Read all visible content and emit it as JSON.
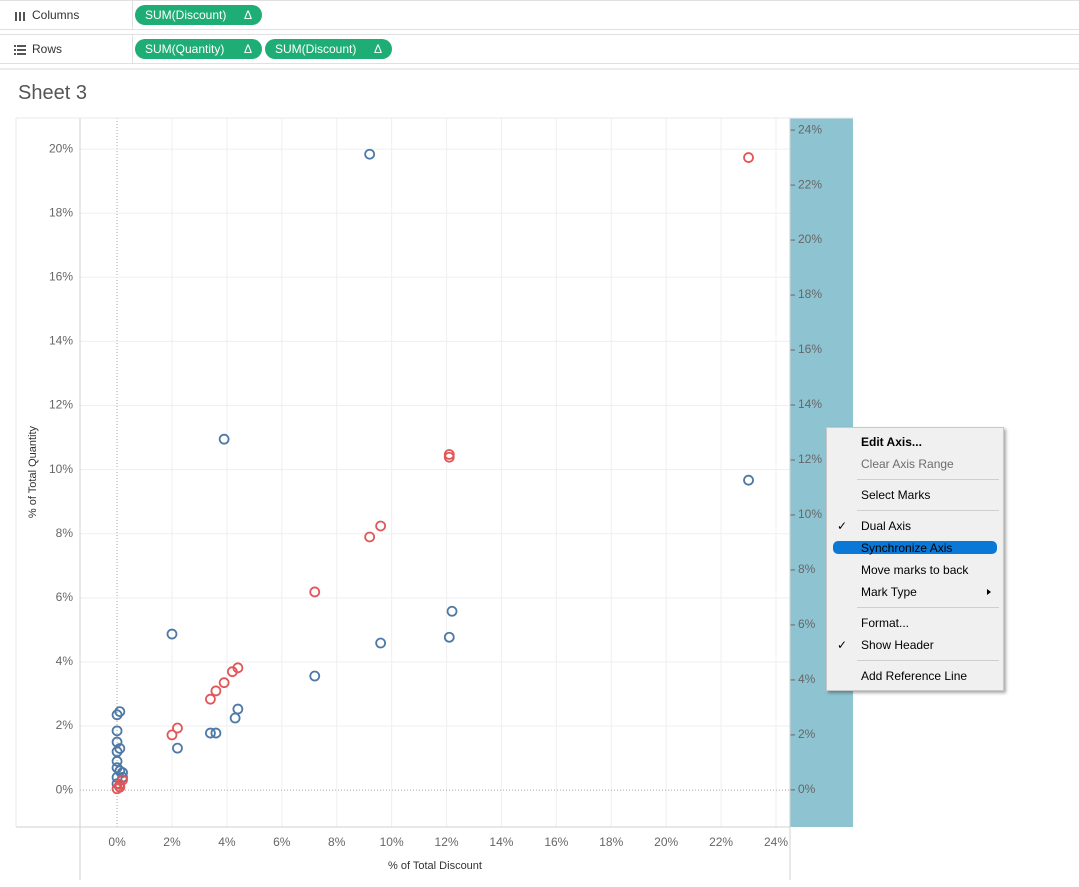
{
  "shelves": [
    {
      "label": "Columns",
      "pills": [
        {
          "text": "SUM(Discount)",
          "mark": "Δ"
        }
      ]
    },
    {
      "label": "Rows",
      "pills": [
        {
          "text": "SUM(Quantity)",
          "mark": "Δ"
        },
        {
          "text": "SUM(Discount)",
          "mark": "Δ"
        }
      ]
    }
  ],
  "sheet_title": "Sheet 3",
  "chart_data": {
    "type": "scatter",
    "x_label": "% of Total Discount",
    "y_label": "% of Total Quantity",
    "xlim": [
      -1.35,
      24.51
    ],
    "ylim": [
      -1.15,
      20.97
    ],
    "y2lim": [
      -1.35,
      24.44
    ],
    "xticks": [
      {
        "value": 0,
        "label": "0%"
      },
      {
        "value": 2,
        "label": "2%"
      },
      {
        "value": 4,
        "label": "4%"
      },
      {
        "value": 6,
        "label": "6%"
      },
      {
        "value": 8,
        "label": "8%"
      },
      {
        "value": 10,
        "label": "10%"
      },
      {
        "value": 12,
        "label": "12%"
      },
      {
        "value": 14,
        "label": "14%"
      },
      {
        "value": 16,
        "label": "16%"
      },
      {
        "value": 18,
        "label": "18%"
      },
      {
        "value": 20,
        "label": "20%"
      },
      {
        "value": 22,
        "label": "22%"
      },
      {
        "value": 24,
        "label": "24%"
      }
    ],
    "yticks": [
      {
        "value": 0,
        "label": "0%"
      },
      {
        "value": 2,
        "label": "2%"
      },
      {
        "value": 4,
        "label": "4%"
      },
      {
        "value": 6,
        "label": "6%"
      },
      {
        "value": 8,
        "label": "8%"
      },
      {
        "value": 10,
        "label": "10%"
      },
      {
        "value": 12,
        "label": "12%"
      },
      {
        "value": 14,
        "label": "14%"
      },
      {
        "value": 16,
        "label": "16%"
      },
      {
        "value": 18,
        "label": "18%"
      },
      {
        "value": 20,
        "label": "20%"
      }
    ],
    "y2ticks": [
      {
        "value": 0,
        "label": "0%"
      },
      {
        "value": 2,
        "label": "2%"
      },
      {
        "value": 4,
        "label": "4%"
      },
      {
        "value": 6,
        "label": "6%"
      },
      {
        "value": 8,
        "label": "8%"
      },
      {
        "value": 10,
        "label": "10%"
      },
      {
        "value": 12,
        "label": "12%"
      },
      {
        "value": 14,
        "label": "14%"
      },
      {
        "value": 16,
        "label": "16%"
      },
      {
        "value": 18,
        "label": "18%"
      },
      {
        "value": 20,
        "label": "20%"
      },
      {
        "value": 22,
        "label": "22%"
      },
      {
        "value": 24,
        "label": "24%"
      }
    ],
    "grid": true,
    "series": [
      {
        "color": "#4e79a7",
        "x": [
          9.2,
          3.9,
          23.0,
          12.2,
          12.1,
          9.6,
          7.2,
          2.0,
          4.4,
          4.3,
          3.6,
          3.4,
          2.2,
          0.1,
          0,
          0,
          0,
          0.1,
          0,
          0,
          0,
          0.1,
          0.2,
          0,
          0.2,
          0,
          0.1
        ],
        "values": [
          19.84,
          10.95,
          9.67,
          5.58,
          4.77,
          4.59,
          3.56,
          4.87,
          2.53,
          2.25,
          1.78,
          1.78,
          1.31,
          2.45,
          2.35,
          1.85,
          1.5,
          1.3,
          1.2,
          0.9,
          0.7,
          0.6,
          0.55,
          0.4,
          0.4,
          0.2,
          0.1
        ]
      },
      {
        "color": "#e15759",
        "axis": "y2",
        "x": [
          23.0,
          12.1,
          12.1,
          9.6,
          9.2,
          7.2,
          4.4,
          4.2,
          3.9,
          3.6,
          3.4,
          2.2,
          2.0,
          0.2,
          0.1,
          0,
          0.1
        ],
        "values": [
          23.0,
          12.2,
          12.1,
          9.6,
          9.2,
          7.2,
          4.44,
          4.3,
          3.9,
          3.6,
          3.3,
          2.25,
          2.0,
          0.36,
          0.2,
          0.04,
          0.1
        ]
      }
    ]
  },
  "context_menu": [
    {
      "label": "Edit Axis...",
      "state": "bold"
    },
    {
      "label": "Clear Axis Range",
      "state": "disabled",
      "separator_after": true
    },
    {
      "label": "Select Marks",
      "separator_after": true
    },
    {
      "label": "Dual Axis",
      "checked": true
    },
    {
      "label": "Synchronize Axis",
      "state": "selected"
    },
    {
      "label": "Move marks to back"
    },
    {
      "label": "Mark Type",
      "submenu": true,
      "separator_after": true
    },
    {
      "label": "Format..."
    },
    {
      "label": "Show Header",
      "checked": true,
      "separator_after": true
    },
    {
      "label": "Add Reference Line"
    }
  ]
}
